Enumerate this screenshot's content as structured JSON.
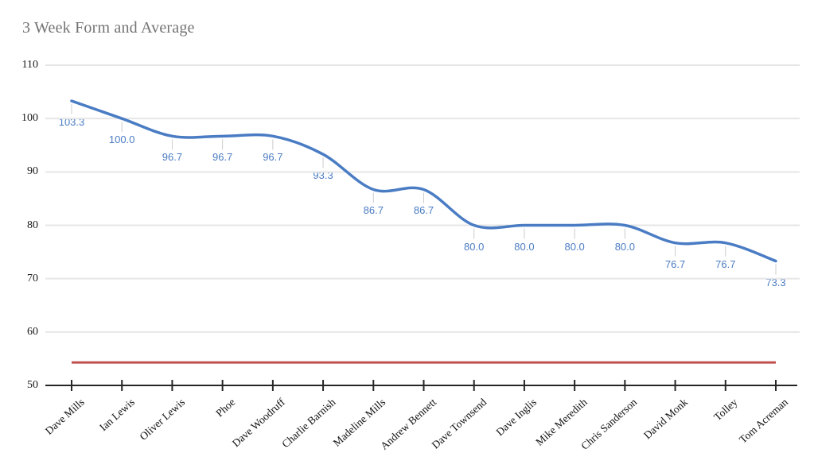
{
  "page": {
    "title": "3 Week Form and Average"
  },
  "chart_data": {
    "type": "line",
    "title": "3 Week Form and Average",
    "categories": [
      "Dave Mills",
      "Ian Lewis",
      "Oliver Lewis",
      "Phoe",
      "Dave Woodruff",
      "Charlie Barnish",
      "Madeline Mills",
      "Andrew Bennett",
      "Dave Townsend",
      "Dave Inglis",
      "Mike Meredith",
      "Chris Sanderson",
      "David Monk",
      "Tolley",
      "Tom Acreman"
    ],
    "series": [
      {
        "name": "3 Week Form",
        "type": "line",
        "smooth": true,
        "color": "#4a7cc4",
        "values": [
          103.3,
          100.0,
          96.7,
          96.7,
          96.7,
          93.3,
          86.7,
          86.7,
          80.0,
          80.0,
          80.0,
          80.0,
          76.7,
          76.7,
          73.3
        ],
        "point_labels": [
          "103.3",
          "100.0",
          "96.7",
          "96.7",
          "96.7",
          "93.3",
          "86.7",
          "86.7",
          "80.0",
          "80.0",
          "80.0",
          "80.0",
          "76.7",
          "76.7",
          "73.3"
        ]
      },
      {
        "name": "Average",
        "type": "line",
        "smooth": false,
        "color": "#c0504d",
        "constant_value": 54.3,
        "point_labels": []
      }
    ],
    "xlabel": "",
    "ylabel": "",
    "ylim": [
      50,
      110
    ],
    "yticks": [
      50,
      60,
      70,
      80,
      90,
      100,
      110
    ],
    "grid": "horizontal",
    "legend": "none",
    "colors": {
      "title": "#737373",
      "gridline": "#e6e6e6",
      "axis": "#262626",
      "annotation_text": "#4b7cc3",
      "annotation_stem": "#cccccc"
    }
  }
}
